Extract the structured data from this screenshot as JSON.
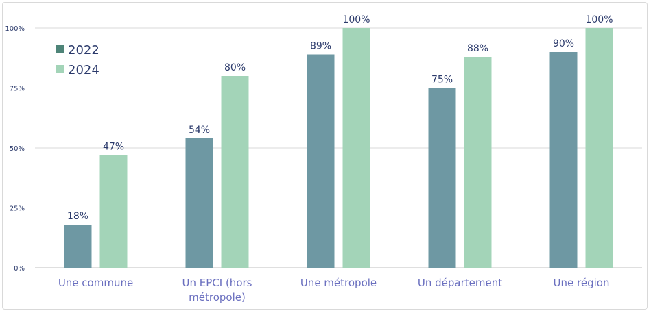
{
  "chart_data": {
    "type": "bar",
    "categories": [
      "Une commune",
      "Un EPCI (hors métropole)",
      "Une métropole",
      "Un département",
      "Une région"
    ],
    "category_lines": [
      [
        "Une commune"
      ],
      [
        "Un EPCI (hors",
        "métropole)"
      ],
      [
        "Une métropole"
      ],
      [
        "Un département"
      ],
      [
        "Une région"
      ]
    ],
    "series": [
      {
        "name": "2022",
        "values": [
          18,
          54,
          89,
          75,
          90
        ],
        "labels": [
          "18%",
          "54%",
          "89%",
          "75%",
          "90%"
        ],
        "color": "#6e98a3"
      },
      {
        "name": "2024",
        "values": [
          47,
          80,
          100,
          88,
          100
        ],
        "labels": [
          "47%",
          "80%",
          "100%",
          "88%",
          "100%"
        ],
        "color": "#a3d4b8"
      }
    ],
    "ylim": [
      0,
      100
    ],
    "yticks": [
      0,
      25,
      50,
      75,
      100
    ],
    "ytick_labels": [
      "0%",
      "25%",
      "50%",
      "75%",
      "100%"
    ],
    "grid": true,
    "legend_position": "top-left",
    "legend_marker_color_2022": "#4e8478",
    "title": "",
    "xlabel": "",
    "ylabel": ""
  }
}
